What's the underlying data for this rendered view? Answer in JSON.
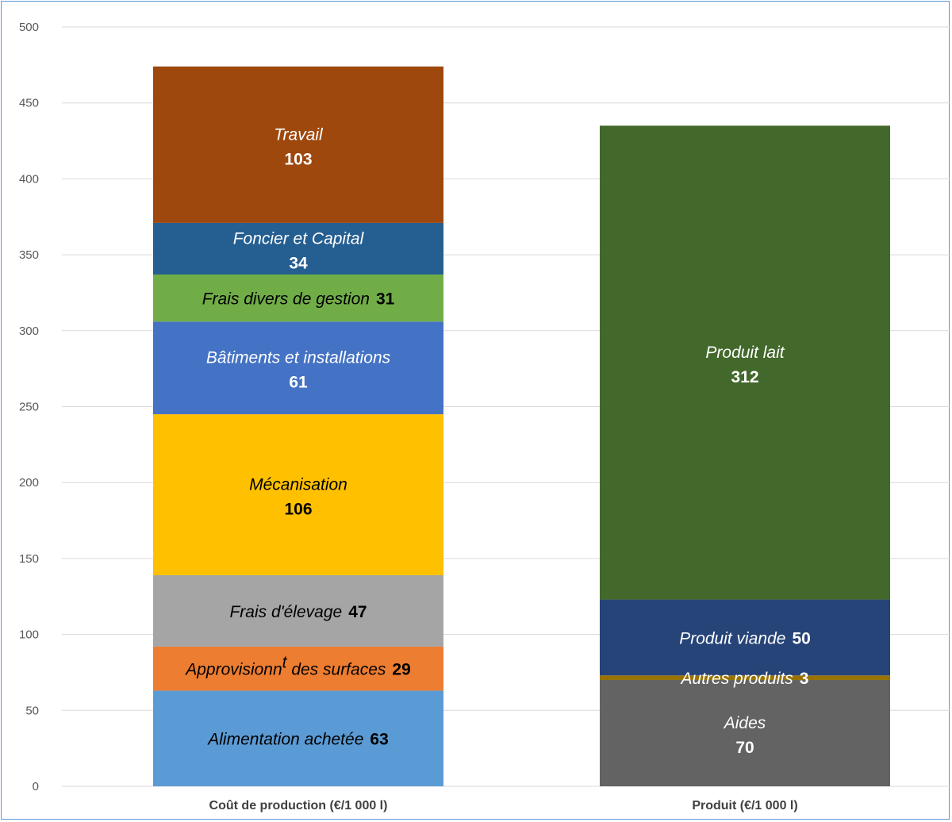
{
  "chart_data": {
    "type": "bar",
    "stacked": true,
    "categories": [
      "Coût de production (€/1 000 l)",
      "Produit (€/1 000 l)"
    ],
    "ylim": [
      0,
      500
    ],
    "yticks": [
      0,
      50,
      100,
      150,
      200,
      250,
      300,
      350,
      400,
      450,
      500
    ],
    "grid": true,
    "legend": "none",
    "stacks": [
      {
        "category": "Coût de production (€/1 000 l)",
        "segments": [
          {
            "name": "Alimentation achetée",
            "value": 63,
            "color": "#5b9bd5",
            "text_color": "#000000",
            "label_layout": "inline"
          },
          {
            "name": "Approvisionn",
            "name_sup": "t",
            "name_after": " des surfaces",
            "value": 29,
            "color": "#ed7d31",
            "text_color": "#000000",
            "label_layout": "inline"
          },
          {
            "name": "Frais d'élevage",
            "value": 47,
            "color": "#a5a5a5",
            "text_color": "#000000",
            "label_layout": "inline"
          },
          {
            "name": "Mécanisation",
            "value": 106,
            "color": "#ffc000",
            "text_color": "#000000",
            "label_layout": "stacked"
          },
          {
            "name": "Bâtiments et installations",
            "value": 61,
            "color": "#4472c4",
            "text_color": "#ffffff",
            "label_layout": "stacked"
          },
          {
            "name": "Frais divers de gestion",
            "value": 31,
            "color": "#70ad47",
            "text_color": "#000000",
            "label_layout": "inline"
          },
          {
            "name": "Foncier et Capital",
            "value": 34,
            "color": "#255e91",
            "text_color": "#ffffff",
            "label_layout": "stacked"
          },
          {
            "name": "Travail",
            "value": 103,
            "color": "#9e480e",
            "text_color": "#ffffff",
            "label_layout": "stacked"
          }
        ]
      },
      {
        "category": "Produit (€/1 000 l)",
        "segments": [
          {
            "name": "Aides",
            "value": 70,
            "color": "#636363",
            "text_color": "#ffffff",
            "label_layout": "stacked"
          },
          {
            "name": "Autres produits",
            "value": 3,
            "color": "#997300",
            "text_color": "#ffffff",
            "label_layout": "inline"
          },
          {
            "name": "Produit viande",
            "value": 50,
            "color": "#264478",
            "text_color": "#ffffff",
            "label_layout": "inline"
          },
          {
            "name": "Produit lait",
            "value": 312,
            "color": "#43682b",
            "text_color": "#ffffff",
            "label_layout": "stacked"
          }
        ]
      }
    ]
  }
}
